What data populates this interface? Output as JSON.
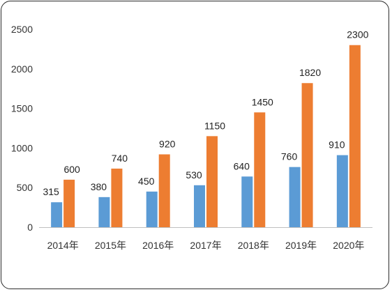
{
  "chart_data": {
    "type": "bar",
    "categories": [
      "2014年",
      "2015年",
      "2016年",
      "2017年",
      "2018年",
      "2019年",
      "2020年"
    ],
    "series": [
      {
        "values": [
          315,
          380,
          450,
          530,
          640,
          760,
          910
        ],
        "color": "#5B9BD5"
      },
      {
        "values": [
          600,
          740,
          920,
          1150,
          1450,
          1820,
          2300
        ],
        "color": "#ED7D31"
      }
    ],
    "ylim": [
      0,
      2500
    ],
    "yticks": [
      0,
      500,
      1000,
      1500,
      2000,
      2500
    ],
    "grid": false,
    "legend": "none",
    "data_labels": true
  }
}
